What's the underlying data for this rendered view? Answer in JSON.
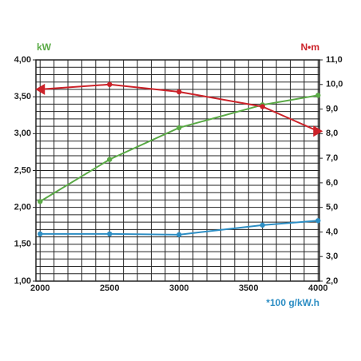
{
  "chart_data": {
    "type": "line",
    "y_label": "kW",
    "y2_label": "N•m",
    "x_note": "*100 g/kW.h",
    "xlim": [
      1970,
      4010
    ],
    "xticks": [
      2000,
      2500,
      3000,
      3500,
      4000
    ],
    "xgrid": [
      2000,
      2100,
      2200,
      2300,
      2400,
      2500,
      2600,
      2700,
      2800,
      2900,
      3000,
      3100,
      3200,
      3300,
      3400,
      3500,
      3600,
      3700,
      3800,
      3900,
      4000
    ],
    "ylim": [
      1.0,
      4.0
    ],
    "yticks": [
      {
        "value": 1.0,
        "label": "1,00"
      },
      {
        "value": 1.5,
        "label": "1,50"
      },
      {
        "value": 2.0,
        "label": "2,00"
      },
      {
        "value": 2.5,
        "label": "2,50"
      },
      {
        "value": 3.0,
        "label": "3,00"
      },
      {
        "value": 3.5,
        "label": "3,50"
      },
      {
        "value": 4.0,
        "label": "4,00"
      }
    ],
    "ygrid": [
      1.0,
      1.1,
      1.2,
      1.3,
      1.4,
      1.5,
      1.6,
      1.7,
      1.8,
      1.9,
      2.0,
      2.1,
      2.2,
      2.3,
      2.4,
      2.5,
      2.6,
      2.7,
      2.8,
      2.9,
      3.0,
      3.1,
      3.2,
      3.3,
      3.4,
      3.5,
      3.6,
      3.7,
      3.8,
      3.9,
      4.0
    ],
    "y2lim": [
      2.0,
      11.0
    ],
    "y2ticks": [
      {
        "value": 2.0,
        "label": "2,0"
      },
      {
        "value": 3.0,
        "label": "3,0"
      },
      {
        "value": 4.0,
        "label": "4,0"
      },
      {
        "value": 5.0,
        "label": "5,0"
      },
      {
        "value": 6.0,
        "label": "6,0"
      },
      {
        "value": 7.0,
        "label": "7,0"
      },
      {
        "value": 8.0,
        "label": "8,0"
      },
      {
        "value": 9.0,
        "label": "9,0"
      },
      {
        "value": 10.0,
        "label": "10,0"
      },
      {
        "value": 11.0,
        "label": "11,0"
      }
    ],
    "series": [
      {
        "color": "#5aaa46",
        "x": [
          2000,
          2500,
          3000,
          3600,
          4000
        ],
        "values": [
          2.08,
          2.65,
          3.08,
          3.39,
          3.52
        ]
      },
      {
        "color": "#cc2229",
        "axis": "y2",
        "x": [
          2000,
          2500,
          3000,
          3600,
          4000
        ],
        "values": [
          9.8,
          10.0,
          9.7,
          9.1,
          8.1
        ]
      },
      {
        "color": "#2d8ec4",
        "x": [
          2000,
          2500,
          3000,
          3600,
          4000
        ],
        "values": [
          1.64,
          1.64,
          1.63,
          1.76,
          1.82
        ]
      }
    ]
  }
}
